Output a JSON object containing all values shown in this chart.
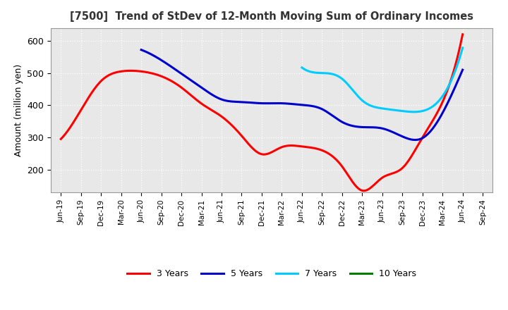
{
  "title": "[7500]  Trend of StDev of 12-Month Moving Sum of Ordinary Incomes",
  "ylabel": "Amount (million yen)",
  "ylim": [
    130,
    640
  ],
  "yticks": [
    200,
    300,
    400,
    500,
    600
  ],
  "background_color": "#ffffff",
  "plot_bg_color": "#e8e8e8",
  "grid_color": "#ffffff",
  "x_labels": [
    "Jun-19",
    "Sep-19",
    "Dec-19",
    "Mar-20",
    "Jun-20",
    "Sep-20",
    "Dec-20",
    "Mar-21",
    "Jun-21",
    "Sep-21",
    "Dec-21",
    "Mar-22",
    "Jun-22",
    "Sep-22",
    "Dec-22",
    "Mar-23",
    "Jun-23",
    "Sep-23",
    "Dec-23",
    "Mar-24",
    "Jun-24",
    "Sep-24"
  ],
  "series": {
    "3 Years": {
      "color": "#ff0000",
      "data": [
        295,
        385,
        475,
        505,
        505,
        490,
        455,
        405,
        365,
        305,
        248,
        270,
        272,
        260,
        210,
        135,
        175,
        205,
        300,
        410,
        620,
        null
      ]
    },
    "5 Years": {
      "color": "#0000cc",
      "data": [
        null,
        null,
        null,
        null,
        572,
        540,
        498,
        455,
        418,
        410,
        406,
        406,
        401,
        388,
        348,
        332,
        328,
        303,
        298,
        376,
        510,
        null
      ]
    },
    "7 Years": {
      "color": "#00ccff",
      "data": [
        null,
        null,
        null,
        null,
        null,
        null,
        null,
        null,
        null,
        null,
        null,
        null,
        517,
        500,
        482,
        415,
        390,
        382,
        382,
        428,
        578,
        null
      ]
    },
    "10 Years": {
      "color": "#008000",
      "data": [
        null,
        null,
        null,
        null,
        null,
        null,
        null,
        null,
        null,
        null,
        null,
        null,
        null,
        null,
        null,
        null,
        null,
        null,
        null,
        null,
        null,
        null
      ]
    }
  },
  "legend_order": [
    "3 Years",
    "5 Years",
    "7 Years",
    "10 Years"
  ]
}
